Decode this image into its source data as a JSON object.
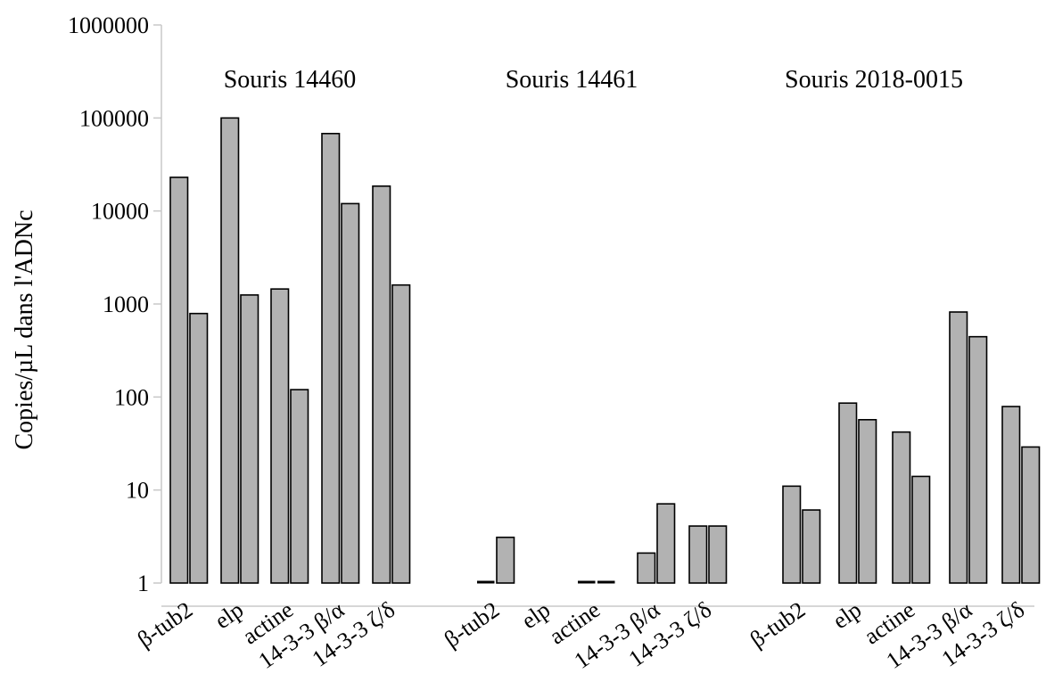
{
  "chart_data": {
    "type": "bar",
    "ylabel": "Copies/µL dans l'ADNc",
    "yscale": "log",
    "ylim": [
      1,
      1000000
    ],
    "yticks": [
      "1",
      "10",
      "100",
      "1000",
      "10000",
      "100000",
      "1000000"
    ],
    "grid": false,
    "legend": "none",
    "groups": [
      {
        "title": "Souris 14460",
        "categories": [
          "β-tub2",
          "elp",
          "actine",
          "14-3-3 β/α",
          "14-3-3 ζ/δ"
        ],
        "series": [
          {
            "values": [
              23000,
              100000,
              1450,
              68000,
              18500
            ]
          },
          {
            "values": [
              790,
              1250,
              120,
              12000,
              1600
            ]
          }
        ]
      },
      {
        "title": "Souris 14461",
        "categories": [
          "β-tub2",
          "elp",
          "actine",
          "14-3-3 β/α",
          "14-3-3 ζ/δ"
        ],
        "series": [
          {
            "values": [
              1,
              null,
              1,
              2.1,
              4.1
            ]
          },
          {
            "values": [
              3.1,
              null,
              1,
              7.1,
              4.1
            ]
          }
        ]
      },
      {
        "title": "Souris 2018-0015",
        "categories": [
          "β-tub2",
          "elp",
          "actine",
          "14-3-3 β/α",
          "14-3-3 ζ/δ"
        ],
        "series": [
          {
            "values": [
              11,
              86,
              42,
              820,
              79
            ]
          },
          {
            "values": [
              6.1,
              57,
              14,
              445,
              29
            ]
          }
        ]
      }
    ],
    "colors": {
      "bar_fill": "#b2b2b2",
      "bar_stroke": "#000000",
      "axis": "#c8c8c8"
    }
  }
}
